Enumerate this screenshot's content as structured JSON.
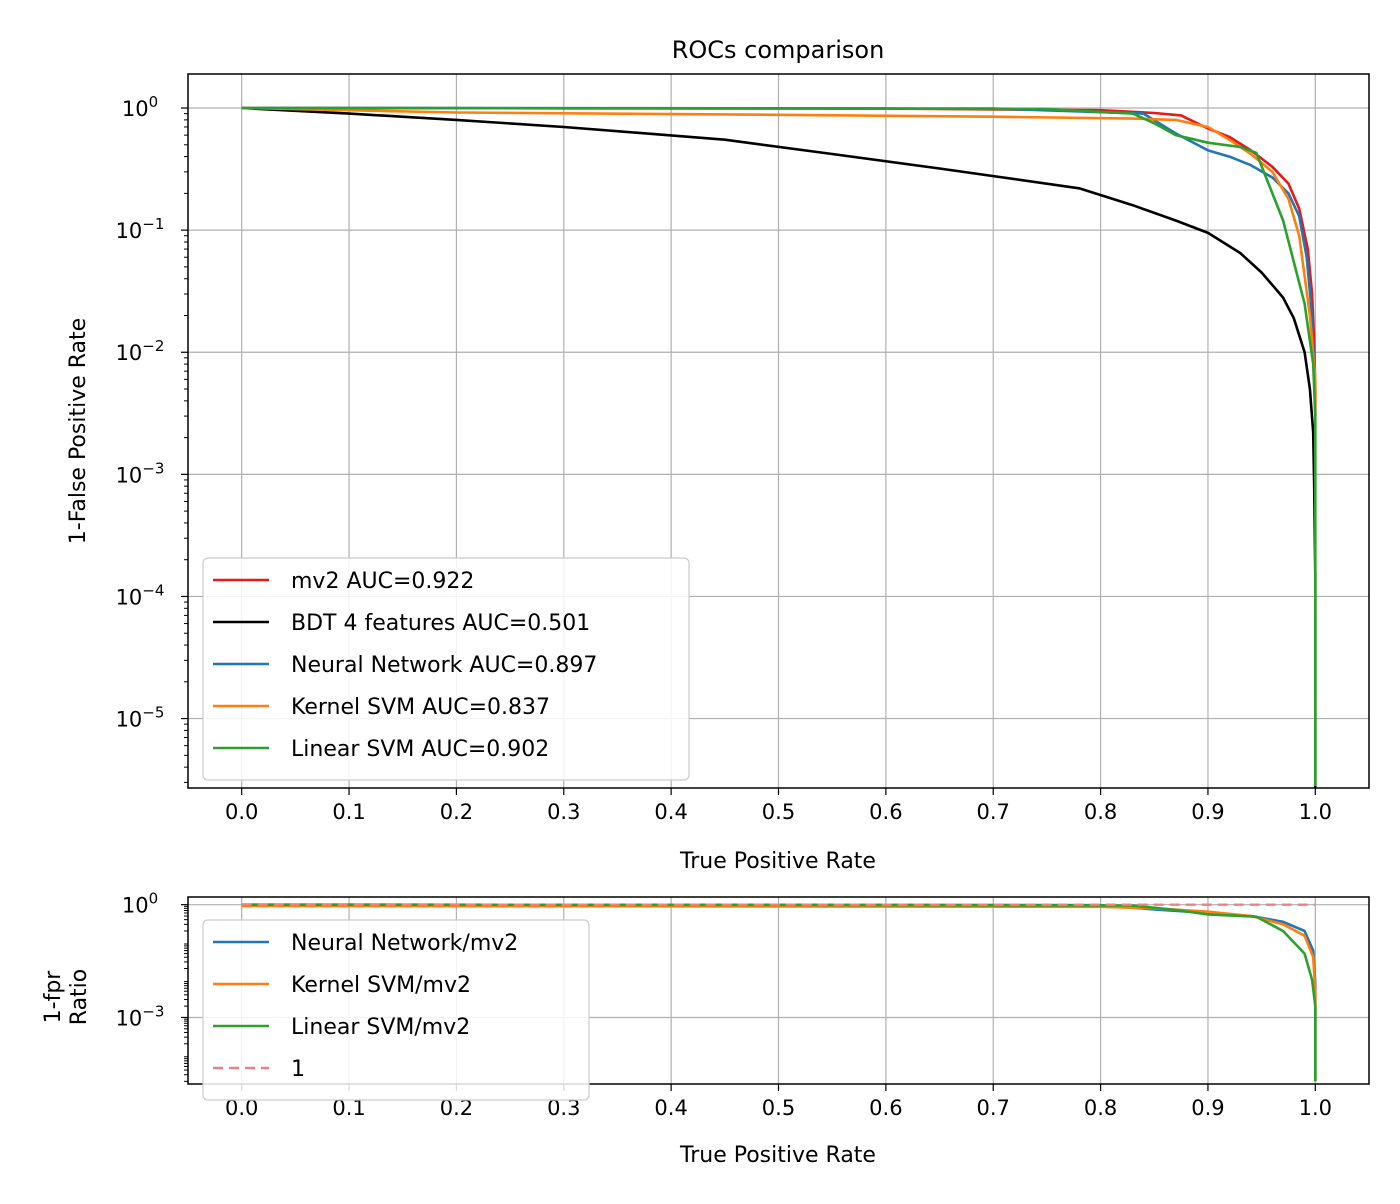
{
  "chart_data": [
    {
      "type": "line",
      "title": "ROCs comparison",
      "xlabel": "True Positive Rate",
      "ylabel": "1-False Positive Rate",
      "xscale": "linear",
      "yscale": "log",
      "xlim": [
        -0.05,
        1.05
      ],
      "ylim": [
        2.7e-06,
        1.9
      ],
      "xticks": [
        0.0,
        0.1,
        0.2,
        0.3,
        0.4,
        0.5,
        0.6,
        0.7,
        0.8,
        0.9,
        1.0
      ],
      "xtick_labels": [
        "0.0",
        "0.1",
        "0.2",
        "0.3",
        "0.4",
        "0.5",
        "0.6",
        "0.7",
        "0.8",
        "0.9",
        "1.0"
      ],
      "yticks": [
        1,
        0.1,
        0.01,
        0.001,
        0.0001,
        1e-05
      ],
      "ytick_labels": [
        {
          "base": "10",
          "exp": "0"
        },
        {
          "base": "10",
          "exp": "−1"
        },
        {
          "base": "10",
          "exp": "−2"
        },
        {
          "base": "10",
          "exp": "−3"
        },
        {
          "base": "10",
          "exp": "−4"
        },
        {
          "base": "10",
          "exp": "−5"
        }
      ],
      "grid": true,
      "legend_position": "lower-left",
      "series": [
        {
          "name": "mv2 AUC=0.922",
          "color": "#e41a1c",
          "style": "solid",
          "x": [
            0,
            0.3,
            0.6,
            0.8,
            0.85,
            0.875,
            0.9,
            0.92,
            0.94,
            0.96,
            0.975,
            0.985,
            0.993,
            0.997,
            0.999,
            1.0,
            1.0
          ],
          "y": [
            1,
            0.995,
            0.99,
            0.96,
            0.91,
            0.87,
            0.68,
            0.58,
            0.45,
            0.33,
            0.24,
            0.15,
            0.07,
            0.03,
            0.012,
            0.005,
            0.003
          ]
        },
        {
          "name": "BDT 4 features AUC=0.501",
          "color": "#000000",
          "style": "solid",
          "x": [
            0,
            0.1,
            0.2,
            0.3,
            0.45,
            0.55,
            0.65,
            0.78,
            0.83,
            0.87,
            0.9,
            0.93,
            0.95,
            0.97,
            0.98,
            0.99,
            0.995,
            0.998,
            0.999,
            1.0,
            1.0
          ],
          "y": [
            1,
            0.9,
            0.8,
            0.7,
            0.55,
            0.42,
            0.32,
            0.22,
            0.16,
            0.12,
            0.095,
            0.065,
            0.045,
            0.028,
            0.019,
            0.01,
            0.005,
            0.0022,
            0.0008,
            0.00015,
            2.7e-06
          ]
        },
        {
          "name": "Neural Network AUC=0.897",
          "color": "#1f77b4",
          "style": "solid",
          "x": [
            0,
            0.4,
            0.7,
            0.84,
            0.87,
            0.9,
            0.92,
            0.94,
            0.96,
            0.975,
            0.985,
            0.992,
            0.996,
            0.999,
            1.0
          ],
          "y": [
            1,
            0.995,
            0.99,
            0.9,
            0.62,
            0.45,
            0.4,
            0.34,
            0.27,
            0.2,
            0.13,
            0.06,
            0.025,
            0.008,
            0.003
          ]
        },
        {
          "name": "Kernel SVM AUC=0.837",
          "color": "#ff7f0e",
          "style": "solid",
          "x": [
            0,
            0.2,
            0.5,
            0.7,
            0.83,
            0.87,
            0.9,
            0.92,
            0.94,
            0.96,
            0.975,
            0.985,
            0.995,
            1.0,
            1.0
          ],
          "y": [
            1,
            0.92,
            0.88,
            0.85,
            0.82,
            0.8,
            0.7,
            0.55,
            0.42,
            0.3,
            0.18,
            0.09,
            0.02,
            0.006,
            0.003
          ]
        },
        {
          "name": "Linear SVM AUC=0.902",
          "color": "#2ca02c",
          "style": "solid",
          "x": [
            0,
            0.5,
            0.75,
            0.83,
            0.85,
            0.87,
            0.9,
            0.93,
            0.945,
            0.97,
            0.99,
            0.998,
            1.0,
            1.0,
            1.0
          ],
          "y": [
            1,
            0.995,
            0.98,
            0.9,
            0.75,
            0.6,
            0.52,
            0.48,
            0.43,
            0.12,
            0.025,
            0.008,
            0.003,
            0.0001,
            2.8e-06
          ]
        }
      ]
    },
    {
      "type": "line",
      "title": "",
      "xlabel": "True Positive Rate",
      "ylabel_lines": [
        "1-fpr",
        "Ratio"
      ],
      "xscale": "linear",
      "yscale": "log",
      "xlim": [
        -0.05,
        1.05
      ],
      "ylim": [
        1.7e-05,
        1.6
      ],
      "xticks": [
        0.0,
        0.1,
        0.2,
        0.3,
        0.4,
        0.5,
        0.6,
        0.7,
        0.8,
        0.9,
        1.0
      ],
      "xtick_labels": [
        "0.0",
        "0.1",
        "0.2",
        "0.3",
        "0.4",
        "0.5",
        "0.6",
        "0.7",
        "0.8",
        "0.9",
        "1.0"
      ],
      "yticks": [
        1,
        0.001
      ],
      "ytick_labels": [
        {
          "base": "10",
          "exp": "0"
        },
        {
          "base": "10",
          "exp": "−3"
        }
      ],
      "grid": true,
      "legend_position": "upper-left",
      "series": [
        {
          "name": "Neural Network/mv2",
          "color": "#1f77b4",
          "style": "solid",
          "x": [
            0,
            0.5,
            0.8,
            0.85,
            0.9,
            0.94,
            0.97,
            0.99,
            0.998,
            1.0,
            1.0
          ],
          "y": [
            1,
            0.99,
            0.97,
            0.75,
            0.6,
            0.5,
            0.35,
            0.2,
            0.06,
            0.008,
            2e-05
          ]
        },
        {
          "name": "Kernel SVM/mv2",
          "color": "#ff7f0e",
          "style": "solid",
          "x": [
            0,
            0.5,
            0.8,
            0.85,
            0.9,
            0.94,
            0.97,
            0.99,
            0.998,
            1.0,
            1.0
          ],
          "y": [
            0.92,
            0.9,
            0.88,
            0.8,
            0.65,
            0.5,
            0.3,
            0.15,
            0.04,
            0.005,
            2e-05
          ]
        },
        {
          "name": "Linear SVM/mv2",
          "color": "#2ca02c",
          "style": "solid",
          "x": [
            0,
            0.5,
            0.83,
            0.87,
            0.9,
            0.945,
            0.97,
            0.99,
            0.997,
            1.0,
            1.0
          ],
          "y": [
            1,
            0.99,
            0.95,
            0.72,
            0.55,
            0.48,
            0.2,
            0.05,
            0.01,
            0.002,
            2e-05
          ]
        },
        {
          "name": "1",
          "color": "#f08080",
          "style": "dashed",
          "x": [
            0,
            1.0
          ],
          "y": [
            1,
            1
          ]
        }
      ]
    }
  ]
}
